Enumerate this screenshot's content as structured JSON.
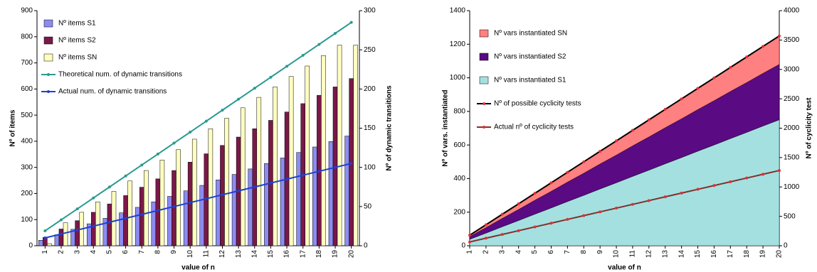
{
  "chart_data": [
    {
      "type": "bar",
      "categories": [
        "1",
        "2",
        "3",
        "4",
        "5",
        "6",
        "7",
        "8",
        "9",
        "10",
        "11",
        "12",
        "13",
        "14",
        "15",
        "16",
        "17",
        "18",
        "19",
        "20"
      ],
      "xlabel": "value of n",
      "ylabel": "Nº of items",
      "y2label": "Nº of dynamic transitions",
      "ylim": [
        0,
        900
      ],
      "yticks": [
        0,
        100,
        200,
        300,
        400,
        500,
        600,
        700,
        800,
        900
      ],
      "y2lim": [
        0,
        300
      ],
      "y2ticks": [
        0,
        50,
        100,
        150,
        200,
        250,
        300
      ],
      "legend": "top-left",
      "series": [
        {
          "name": "Nº items S1",
          "type": "bar",
          "color": "#8c8cf0",
          "values": [
            21,
            42,
            63,
            84,
            105,
            126,
            147,
            168,
            189,
            210,
            231,
            252,
            273,
            294,
            315,
            336,
            357,
            378,
            399,
            420
          ]
        },
        {
          "name": "Nº items S2",
          "type": "bar",
          "color": "#7a1848",
          "values": [
            32,
            64,
            96,
            128,
            160,
            192,
            224,
            256,
            288,
            320,
            352,
            384,
            416,
            448,
            480,
            512,
            544,
            576,
            608,
            640
          ]
        },
        {
          "name": "Nº items SN",
          "type": "bar",
          "color": "#ffffc0",
          "values": [
            8,
            88,
            128,
            168,
            208,
            248,
            288,
            328,
            368,
            408,
            448,
            488,
            528,
            568,
            608,
            648,
            688,
            728,
            768,
            768
          ]
        },
        {
          "name": "Theoretical num. of dynamic transitions",
          "type": "line",
          "axis": "y2",
          "color": "#2a9a90",
          "values": [
            19,
            33,
            47,
            61,
            75,
            89,
            103,
            117,
            131,
            145,
            159,
            173,
            187,
            201,
            215,
            229,
            243,
            257,
            271,
            285
          ]
        },
        {
          "name": "Actual num. of dynamic transitions",
          "type": "line",
          "axis": "y2",
          "color": "#1f3fd0",
          "values": [
            10,
            15,
            20,
            25,
            30,
            35,
            40,
            45,
            50,
            55,
            60,
            65,
            70,
            75,
            80,
            85,
            90,
            95,
            100,
            105
          ]
        }
      ]
    },
    {
      "type": "area",
      "categories": [
        "1",
        "2",
        "3",
        "4",
        "5",
        "6",
        "7",
        "8",
        "9",
        "10",
        "11",
        "12",
        "13",
        "14",
        "15",
        "16",
        "17",
        "18",
        "19",
        "20"
      ],
      "xlabel": "value of n",
      "ylabel": "Nº of vars. instantiated",
      "y2label": "Nº of cyclicity test",
      "ylim": [
        0,
        1400
      ],
      "yticks": [
        0,
        200,
        400,
        600,
        800,
        1000,
        1200,
        1400
      ],
      "y2lim": [
        0,
        4000
      ],
      "y2ticks": [
        0,
        500,
        1000,
        1500,
        2000,
        2500,
        3000,
        3500,
        4000
      ],
      "legend": "top-left",
      "series": [
        {
          "name": "Nº vars instantiated S1",
          "type": "area",
          "color": "#a4e0e0",
          "values": [
            38,
            75,
            113,
            150,
            188,
            225,
            263,
            300,
            338,
            375,
            413,
            450,
            488,
            525,
            563,
            600,
            638,
            675,
            713,
            750
          ]
        },
        {
          "name": "Nº vars instantiated S2",
          "type": "area",
          "color": "#5a0a82",
          "values": [
            17,
            33,
            50,
            66,
            83,
            99,
            116,
            132,
            149,
            165,
            182,
            198,
            215,
            231,
            248,
            264,
            281,
            297,
            314,
            330
          ]
        },
        {
          "name": "Nº vars instantiated SN",
          "type": "area",
          "color": "#ff8080",
          "values": [
            9,
            17,
            26,
            34,
            43,
            51,
            60,
            68,
            77,
            85,
            94,
            102,
            111,
            119,
            128,
            136,
            145,
            153,
            162,
            170
          ]
        },
        {
          "name": "Nº of possible cyclicity tests",
          "type": "line",
          "axis": "y2",
          "color": "#000000",
          "marker": "#e03030",
          "values": [
            179,
            357,
            536,
            714,
            893,
            1071,
            1250,
            1428,
            1607,
            1785,
            1964,
            2142,
            2321,
            2499,
            2678,
            2856,
            3035,
            3213,
            3392,
            3570
          ]
        },
        {
          "name": "Actual nº of cyclicity tests",
          "type": "line",
          "axis": "y2",
          "color": "#803030",
          "marker": "#e03030",
          "values": [
            64,
            128,
            192,
            256,
            320,
            384,
            448,
            512,
            576,
            640,
            704,
            768,
            832,
            896,
            960,
            1024,
            1088,
            1152,
            1216,
            1280
          ]
        }
      ]
    }
  ]
}
